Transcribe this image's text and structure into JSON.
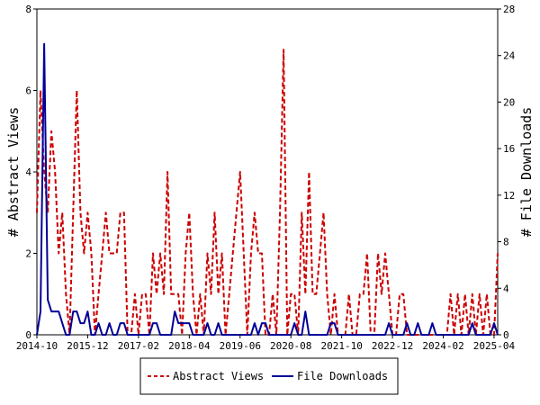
{
  "chart_data": {
    "type": "line",
    "ylabel_left": "# Abstract Views",
    "ylabel_right": "# File Downloads",
    "ylim_left": [
      0,
      8
    ],
    "ylim_right": [
      0,
      28
    ],
    "yticks_left": [
      "0",
      "2",
      "4",
      "6",
      "8"
    ],
    "yticks_right": [
      "0",
      "4",
      "8",
      "12",
      "16",
      "20",
      "24",
      "28"
    ],
    "xticks": [
      "2014-10",
      "2015-12",
      "2017-02",
      "2018-04",
      "2019-06",
      "2020-08",
      "2021-10",
      "2022-12",
      "2024-02",
      "2025-04"
    ],
    "x_range": [
      "2014-10",
      "2025-05"
    ],
    "grid": false,
    "legend_position": "bottom",
    "series": [
      {
        "name": "Abstract Views",
        "color": "#cc0000",
        "style": "dashed",
        "axis": "left",
        "points": [
          [
            "2014-10",
            3
          ],
          [
            "2014-11",
            6
          ],
          [
            "2014-12",
            4
          ],
          [
            "2015-01",
            3
          ],
          [
            "2015-02",
            5
          ],
          [
            "2015-03",
            4
          ],
          [
            "2015-04",
            2
          ],
          [
            "2015-05",
            3
          ],
          [
            "2015-06",
            1
          ],
          [
            "2015-07",
            0
          ],
          [
            "2015-08",
            3
          ],
          [
            "2015-09",
            6
          ],
          [
            "2015-10",
            3
          ],
          [
            "2015-11",
            2
          ],
          [
            "2015-12",
            3
          ],
          [
            "2016-01",
            2
          ],
          [
            "2016-02",
            0
          ],
          [
            "2016-03",
            1
          ],
          [
            "2016-04",
            2
          ],
          [
            "2016-05",
            3
          ],
          [
            "2016-06",
            2
          ],
          [
            "2016-07",
            2
          ],
          [
            "2016-08",
            2
          ],
          [
            "2016-09",
            3
          ],
          [
            "2016-10",
            3
          ],
          [
            "2016-11",
            0
          ],
          [
            "2016-12",
            0
          ],
          [
            "2017-01",
            1
          ],
          [
            "2017-02",
            0
          ],
          [
            "2017-03",
            1
          ],
          [
            "2017-04",
            1
          ],
          [
            "2017-05",
            0
          ],
          [
            "2017-06",
            2
          ],
          [
            "2017-07",
            1
          ],
          [
            "2017-08",
            2
          ],
          [
            "2017-09",
            1
          ],
          [
            "2017-10",
            4
          ],
          [
            "2017-11",
            1
          ],
          [
            "2017-12",
            1
          ],
          [
            "2018-01",
            1
          ],
          [
            "2018-02",
            0
          ],
          [
            "2018-03",
            2
          ],
          [
            "2018-04",
            3
          ],
          [
            "2018-05",
            1
          ],
          [
            "2018-06",
            0
          ],
          [
            "2018-07",
            1
          ],
          [
            "2018-08",
            0
          ],
          [
            "2018-09",
            2
          ],
          [
            "2018-10",
            1
          ],
          [
            "2018-11",
            3
          ],
          [
            "2018-12",
            1
          ],
          [
            "2019-01",
            2
          ],
          [
            "2019-02",
            0
          ],
          [
            "2019-03",
            1
          ],
          [
            "2019-04",
            2
          ],
          [
            "2019-05",
            3
          ],
          [
            "2019-06",
            4
          ],
          [
            "2019-07",
            2
          ],
          [
            "2019-08",
            0
          ],
          [
            "2019-09",
            2
          ],
          [
            "2019-10",
            3
          ],
          [
            "2019-11",
            2
          ],
          [
            "2019-12",
            2
          ],
          [
            "2020-01",
            0
          ],
          [
            "2020-02",
            0
          ],
          [
            "2020-03",
            1
          ],
          [
            "2020-04",
            0
          ],
          [
            "2020-05",
            3
          ],
          [
            "2020-06",
            7
          ],
          [
            "2020-07",
            0
          ],
          [
            "2020-08",
            1
          ],
          [
            "2020-09",
            1
          ],
          [
            "2020-10",
            0
          ],
          [
            "2020-11",
            3
          ],
          [
            "2020-12",
            1
          ],
          [
            "2021-01",
            4
          ],
          [
            "2021-02",
            1
          ],
          [
            "2021-03",
            1
          ],
          [
            "2021-04",
            2
          ],
          [
            "2021-05",
            3
          ],
          [
            "2021-06",
            1
          ],
          [
            "2021-07",
            0
          ],
          [
            "2021-08",
            1
          ],
          [
            "2021-09",
            0
          ],
          [
            "2021-10",
            0
          ],
          [
            "2021-11",
            0
          ],
          [
            "2021-12",
            1
          ],
          [
            "2022-01",
            0
          ],
          [
            "2022-02",
            0
          ],
          [
            "2022-03",
            1
          ],
          [
            "2022-04",
            1
          ],
          [
            "2022-05",
            2
          ],
          [
            "2022-06",
            0
          ],
          [
            "2022-07",
            0
          ],
          [
            "2022-08",
            2
          ],
          [
            "2022-09",
            1
          ],
          [
            "2022-10",
            2
          ],
          [
            "2022-11",
            1
          ],
          [
            "2022-12",
            0
          ],
          [
            "2023-01",
            0
          ],
          [
            "2023-02",
            1
          ],
          [
            "2023-03",
            1
          ],
          [
            "2023-04",
            0
          ],
          [
            "2023-05",
            0
          ],
          [
            "2023-06",
            0
          ],
          [
            "2023-07",
            0
          ],
          [
            "2023-08",
            0
          ],
          [
            "2023-09",
            0
          ],
          [
            "2023-10",
            0
          ],
          [
            "2023-11",
            0
          ],
          [
            "2023-12",
            0
          ],
          [
            "2024-01",
            0
          ],
          [
            "2024-02",
            0
          ],
          [
            "2024-03",
            0
          ],
          [
            "2024-04",
            1
          ],
          [
            "2024-05",
            0
          ],
          [
            "2024-06",
            1
          ],
          [
            "2024-07",
            0
          ],
          [
            "2024-08",
            1
          ],
          [
            "2024-09",
            0
          ],
          [
            "2024-10",
            1
          ],
          [
            "2024-11",
            0
          ],
          [
            "2024-12",
            1
          ],
          [
            "2025-01",
            0
          ],
          [
            "2025-02",
            1
          ],
          [
            "2025-03",
            0
          ],
          [
            "2025-04",
            0
          ],
          [
            "2025-05",
            2
          ]
        ]
      },
      {
        "name": "File Downloads",
        "color": "#000099",
        "style": "solid",
        "axis": "right",
        "points": [
          [
            "2014-10",
            0
          ],
          [
            "2014-11",
            2
          ],
          [
            "2014-12",
            25
          ],
          [
            "2015-01",
            3
          ],
          [
            "2015-02",
            2
          ],
          [
            "2015-03",
            2
          ],
          [
            "2015-04",
            2
          ],
          [
            "2015-05",
            1
          ],
          [
            "2015-06",
            0
          ],
          [
            "2015-07",
            0
          ],
          [
            "2015-08",
            2
          ],
          [
            "2015-09",
            2
          ],
          [
            "2015-10",
            1
          ],
          [
            "2015-11",
            1
          ],
          [
            "2015-12",
            2
          ],
          [
            "2016-01",
            0
          ],
          [
            "2016-02",
            0
          ],
          [
            "2016-03",
            1
          ],
          [
            "2016-04",
            0
          ],
          [
            "2016-05",
            0
          ],
          [
            "2016-06",
            1
          ],
          [
            "2016-07",
            0
          ],
          [
            "2016-08",
            0
          ],
          [
            "2016-09",
            1
          ],
          [
            "2016-10",
            1
          ],
          [
            "2016-11",
            0
          ],
          [
            "2016-12",
            0
          ],
          [
            "2017-01",
            0
          ],
          [
            "2017-02",
            0
          ],
          [
            "2017-03",
            0
          ],
          [
            "2017-04",
            0
          ],
          [
            "2017-05",
            0
          ],
          [
            "2017-06",
            1
          ],
          [
            "2017-07",
            1
          ],
          [
            "2017-08",
            0
          ],
          [
            "2017-09",
            0
          ],
          [
            "2017-10",
            0
          ],
          [
            "2017-11",
            0
          ],
          [
            "2017-12",
            2
          ],
          [
            "2018-01",
            1
          ],
          [
            "2018-02",
            1
          ],
          [
            "2018-03",
            1
          ],
          [
            "2018-04",
            1
          ],
          [
            "2018-05",
            0
          ],
          [
            "2018-06",
            0
          ],
          [
            "2018-07",
            0
          ],
          [
            "2018-08",
            0
          ],
          [
            "2018-09",
            1
          ],
          [
            "2018-10",
            0
          ],
          [
            "2018-11",
            0
          ],
          [
            "2018-12",
            1
          ],
          [
            "2019-01",
            0
          ],
          [
            "2019-02",
            0
          ],
          [
            "2019-03",
            0
          ],
          [
            "2019-04",
            0
          ],
          [
            "2019-05",
            0
          ],
          [
            "2019-06",
            0
          ],
          [
            "2019-07",
            0
          ],
          [
            "2019-08",
            0
          ],
          [
            "2019-09",
            0
          ],
          [
            "2019-10",
            1
          ],
          [
            "2019-11",
            0
          ],
          [
            "2019-12",
            1
          ],
          [
            "2020-01",
            1
          ],
          [
            "2020-02",
            0
          ],
          [
            "2020-03",
            0
          ],
          [
            "2020-04",
            0
          ],
          [
            "2020-05",
            0
          ],
          [
            "2020-06",
            0
          ],
          [
            "2020-07",
            0
          ],
          [
            "2020-08",
            0
          ],
          [
            "2020-09",
            1
          ],
          [
            "2020-10",
            0
          ],
          [
            "2020-11",
            0
          ],
          [
            "2020-12",
            2
          ],
          [
            "2021-01",
            0
          ],
          [
            "2021-02",
            0
          ],
          [
            "2021-03",
            0
          ],
          [
            "2021-04",
            0
          ],
          [
            "2021-05",
            0
          ],
          [
            "2021-06",
            0
          ],
          [
            "2021-07",
            1
          ],
          [
            "2021-08",
            1
          ],
          [
            "2021-09",
            0
          ],
          [
            "2021-10",
            0
          ],
          [
            "2021-11",
            0
          ],
          [
            "2021-12",
            0
          ],
          [
            "2022-01",
            0
          ],
          [
            "2022-02",
            0
          ],
          [
            "2022-03",
            0
          ],
          [
            "2022-04",
            0
          ],
          [
            "2022-05",
            0
          ],
          [
            "2022-06",
            0
          ],
          [
            "2022-07",
            0
          ],
          [
            "2022-08",
            0
          ],
          [
            "2022-09",
            0
          ],
          [
            "2022-10",
            0
          ],
          [
            "2022-11",
            1
          ],
          [
            "2022-12",
            0
          ],
          [
            "2023-01",
            0
          ],
          [
            "2023-02",
            0
          ],
          [
            "2023-03",
            0
          ],
          [
            "2023-04",
            1
          ],
          [
            "2023-05",
            0
          ],
          [
            "2023-06",
            0
          ],
          [
            "2023-07",
            1
          ],
          [
            "2023-08",
            0
          ],
          [
            "2023-09",
            0
          ],
          [
            "2023-10",
            0
          ],
          [
            "2023-11",
            1
          ],
          [
            "2023-12",
            0
          ],
          [
            "2024-01",
            0
          ],
          [
            "2024-02",
            0
          ],
          [
            "2024-03",
            0
          ],
          [
            "2024-04",
            0
          ],
          [
            "2024-05",
            0
          ],
          [
            "2024-06",
            0
          ],
          [
            "2024-07",
            0
          ],
          [
            "2024-08",
            0
          ],
          [
            "2024-09",
            0
          ],
          [
            "2024-10",
            1
          ],
          [
            "2024-11",
            0
          ],
          [
            "2024-12",
            0
          ],
          [
            "2025-01",
            0
          ],
          [
            "2025-02",
            0
          ],
          [
            "2025-03",
            0
          ],
          [
            "2025-04",
            1
          ],
          [
            "2025-05",
            0
          ]
        ]
      }
    ]
  }
}
